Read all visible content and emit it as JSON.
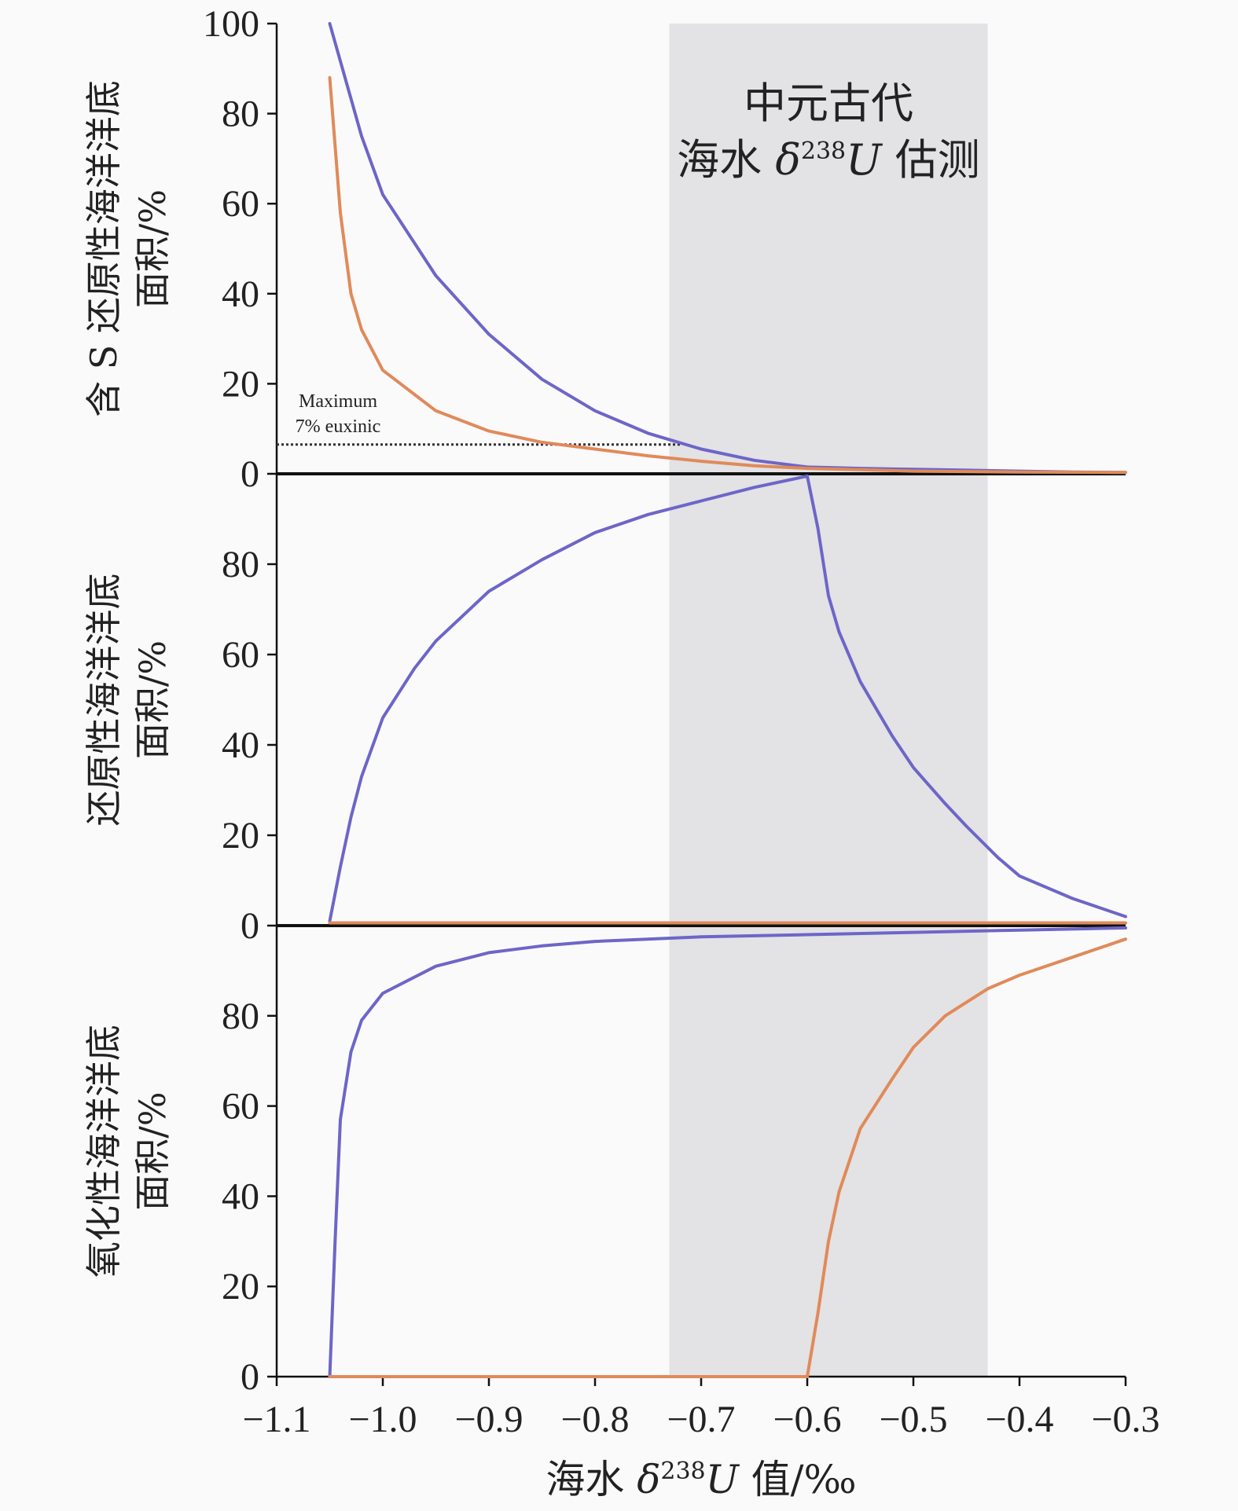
{
  "chart_data": {
    "type": "line",
    "xlabel": {
      "pre": "海水 ",
      "delta": "δ",
      "sup": "238",
      "iso": "U",
      "post": " 值/‰"
    },
    "x_axis": {
      "lim": [
        -1.1,
        -0.3
      ],
      "ticks": [
        -1.1,
        -1.0,
        -0.9,
        -0.8,
        -0.7,
        -0.6,
        -0.5,
        -0.4,
        -0.3
      ],
      "tick_labels": [
        "−1.1",
        "−1.0",
        "−0.9",
        "−0.8",
        "−0.7",
        "−0.6",
        "−0.5",
        "−0.4",
        "−0.3"
      ]
    },
    "shaded_band": {
      "x_range": [
        -0.73,
        -0.43
      ],
      "color": "#e3e2e4",
      "label_line1": "中元古代",
      "label_line2": {
        "pre": "海水 ",
        "delta": "δ",
        "sup": "238",
        "iso": "U",
        "post": " 估测"
      }
    },
    "colors": {
      "blue": "#6d66c8",
      "orange": "#e08a5a",
      "axis": "#111111",
      "dotted": "#333333"
    },
    "panels": [
      {
        "ylabel_line1": "含 S 还原性海洋洋底",
        "ylabel_line2": "面积/%",
        "ylim": [
          0,
          100
        ],
        "yticks": [
          0,
          20,
          40,
          60,
          80,
          100
        ],
        "ytick_labels": [
          "0",
          "20",
          "40",
          "60",
          "80",
          "100"
        ],
        "annotation": {
          "line1": "Maximum",
          "line2": "7% euxinic",
          "y": 6.5,
          "x_range": [
            -1.1,
            -0.72
          ]
        },
        "series": [
          {
            "color": "blue",
            "x": [
              -1.05,
              -1.02,
              -1.0,
              -0.95,
              -0.9,
              -0.85,
              -0.8,
              -0.75,
              -0.7,
              -0.65,
              -0.6,
              -0.55,
              -0.5,
              -0.45,
              -0.4,
              -0.35,
              -0.3
            ],
            "y": [
              100,
              75,
              62,
              44,
              31,
              21,
              14,
              9,
              5.5,
              3,
              1.5,
              1.2,
              1,
              0.8,
              0.6,
              0.4,
              0.3
            ]
          },
          {
            "color": "orange",
            "x": [
              -1.05,
              -1.04,
              -1.03,
              -1.02,
              -1.0,
              -0.95,
              -0.9,
              -0.85,
              -0.8,
              -0.75,
              -0.7,
              -0.65,
              -0.6,
              -0.55,
              -0.5,
              -0.4,
              -0.3
            ],
            "y": [
              88,
              58,
              40,
              32,
              23,
              14,
              9.5,
              7,
              5.5,
              4,
              2.8,
              1.8,
              1.2,
              0.9,
              0.6,
              0.4,
              0.3
            ]
          }
        ]
      },
      {
        "ylabel_line1": "还原性海洋洋底",
        "ylabel_line2": "面积/%",
        "ylim": [
          0,
          100
        ],
        "yticks": [
          0,
          20,
          40,
          60,
          80
        ],
        "ytick_labels": [
          "0",
          "20",
          "40",
          "60",
          "80"
        ],
        "series": [
          {
            "color": "blue",
            "x": [
              -1.05,
              -1.04,
              -1.03,
              -1.02,
              -1.0,
              -0.97,
              -0.95,
              -0.9,
              -0.85,
              -0.8,
              -0.75,
              -0.7,
              -0.65,
              -0.6,
              -0.59,
              -0.58,
              -0.57,
              -0.55,
              -0.52,
              -0.5,
              -0.47,
              -0.45,
              -0.42,
              -0.4,
              -0.35,
              -0.3
            ],
            "y": [
              1,
              13,
              24,
              33,
              46,
              57,
              63,
              74,
              81,
              87,
              91,
              94,
              97,
              99.5,
              88,
              73,
              65,
              54,
              42,
              35,
              27,
              22,
              15,
              11,
              6,
              2
            ]
          },
          {
            "color": "orange",
            "x": [
              -1.05,
              -0.3
            ],
            "y": [
              0.6,
              0.6
            ]
          }
        ]
      },
      {
        "ylabel_line1": "氧化性海洋洋底",
        "ylabel_line2": "面积/%",
        "ylim": [
          0,
          100
        ],
        "yticks": [
          0,
          20,
          40,
          60,
          80
        ],
        "ytick_labels": [
          "0",
          "20",
          "40",
          "60",
          "80"
        ],
        "series": [
          {
            "color": "blue",
            "x": [
              -1.05,
              -1.045,
              -1.04,
              -1.03,
              -1.02,
              -1.0,
              -0.95,
              -0.9,
              -0.85,
              -0.8,
              -0.7,
              -0.6,
              -0.5,
              -0.4,
              -0.3
            ],
            "y": [
              0,
              30,
              57,
              72,
              79,
              85,
              91,
              94,
              95.5,
              96.5,
              97.5,
              98,
              98.5,
              99,
              99.5
            ]
          },
          {
            "color": "orange",
            "x": [
              -1.05,
              -0.6,
              -0.59,
              -0.58,
              -0.57,
              -0.55,
              -0.52,
              -0.5,
              -0.47,
              -0.45,
              -0.43,
              -0.4,
              -0.35,
              -0.3
            ],
            "y": [
              0,
              0,
              14,
              30,
              41,
              55,
              66,
              73,
              80,
              83,
              86,
              89,
              93,
              97
            ]
          }
        ]
      }
    ]
  }
}
